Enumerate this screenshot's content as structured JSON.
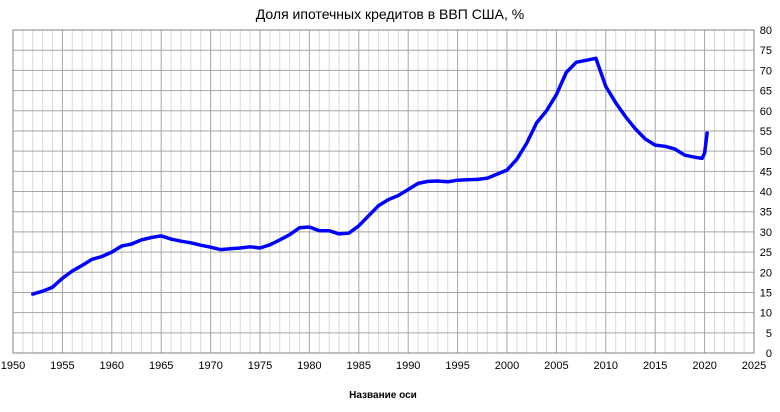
{
  "chart_data": {
    "type": "line",
    "title": "Доля ипотечных кредитов в ВВП США, %",
    "xlabel": "Название оси",
    "ylabel": "",
    "xlim": [
      1950,
      2025
    ],
    "ylim": [
      0,
      80
    ],
    "x_ticks": [
      "1950",
      "1955",
      "1960",
      "1965",
      "1970",
      "1975",
      "1980",
      "1985",
      "1990",
      "1995",
      "2000",
      "2005",
      "2010",
      "2015",
      "2020",
      "2025"
    ],
    "y_ticks": [
      "0",
      "5",
      "10",
      "15",
      "20",
      "25",
      "30",
      "35",
      "40",
      "45",
      "50",
      "55",
      "60",
      "65",
      "70",
      "75",
      "80"
    ],
    "grid": true,
    "line_color": "#0000ff",
    "series": [
      {
        "x": [
          1952,
          1953,
          1954,
          1955,
          1956,
          1957,
          1958,
          1959,
          1960,
          1961,
          1962,
          1963,
          1964,
          1965,
          1966,
          1967,
          1968,
          1969,
          1970,
          1971,
          1972,
          1973,
          1974,
          1975,
          1976,
          1977,
          1978,
          1979,
          1980,
          1981,
          1982,
          1983,
          1984,
          1985,
          1986,
          1987,
          1988,
          1989,
          1990,
          1991,
          1992,
          1993,
          1994,
          1995,
          1996,
          1997,
          1998,
          1999,
          2000,
          2001,
          2002,
          2003,
          2004,
          2005,
          2006,
          2007,
          2008,
          2009,
          2010,
          2011,
          2012,
          2013,
          2014,
          2015,
          2016,
          2017,
          2018,
          2019,
          2019.75,
          2020,
          2020.25
        ],
        "y": [
          14.6,
          15.3,
          16.3,
          18.5,
          20.3,
          21.7,
          23.2,
          23.9,
          25.0,
          26.5,
          27.0,
          28.0,
          28.6,
          29.0,
          28.2,
          27.7,
          27.3,
          26.7,
          26.2,
          25.6,
          25.8,
          26.0,
          26.3,
          26.0,
          26.8,
          28.0,
          29.3,
          31.0,
          31.2,
          30.3,
          30.3,
          29.5,
          29.7,
          31.5,
          34.0,
          36.5,
          38.0,
          39.0,
          40.5,
          42.0,
          42.5,
          42.6,
          42.4,
          42.8,
          42.9,
          43.0,
          43.3,
          44.3,
          45.3,
          48.0,
          52.0,
          57.0,
          60.0,
          64.0,
          69.5,
          72.0,
          72.5,
          73.0,
          66.0,
          62.0,
          58.5,
          55.5,
          53.0,
          51.5,
          51.2,
          50.5,
          49.0,
          48.5,
          48.2,
          49.5,
          54.5
        ]
      }
    ]
  }
}
